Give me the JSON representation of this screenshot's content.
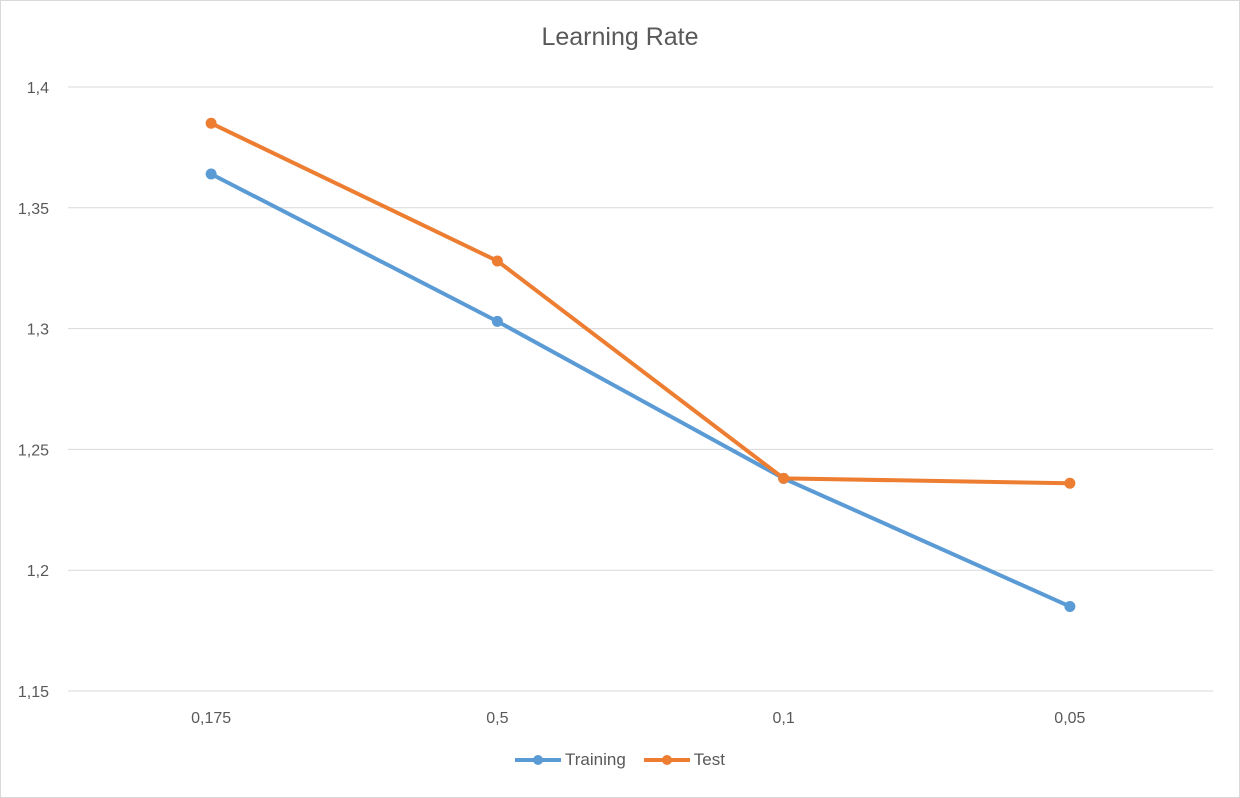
{
  "chart_data": {
    "type": "line",
    "title": "Learning Rate",
    "xlabel": "",
    "ylabel": "",
    "categories": [
      "0,175",
      "0,5",
      "0,1",
      "0,05"
    ],
    "ylim": [
      1.15,
      1.4
    ],
    "yticks": [
      "1,15",
      "1,2",
      "1,25",
      "1,3",
      "1,35",
      "1,4"
    ],
    "ytick_values": [
      1.15,
      1.2,
      1.25,
      1.3,
      1.35,
      1.4
    ],
    "grid": true,
    "legend_position": "bottom",
    "series": [
      {
        "name": "Training",
        "color": "#5b9bd5",
        "values": [
          1.364,
          1.303,
          1.238,
          1.185
        ]
      },
      {
        "name": "Test",
        "color": "#ed7d31",
        "values": [
          1.385,
          1.328,
          1.238,
          1.236
        ]
      }
    ]
  }
}
